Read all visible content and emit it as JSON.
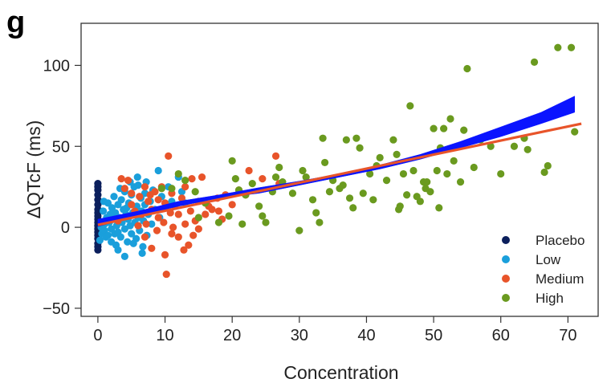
{
  "panel_label": "g",
  "chart_data": {
    "type": "scatter",
    "xlabel": "Concentration",
    "ylabel": "ΔQTcF (ms)",
    "xlim": [
      -2.5,
      74.5
    ],
    "ylim": [
      -55,
      126
    ],
    "x_ticks": [
      0,
      10,
      20,
      30,
      40,
      50,
      60,
      70
    ],
    "y_ticks": [
      -50,
      0,
      50,
      100
    ],
    "grid": false,
    "legend_position": "bottom-right",
    "series": [
      {
        "name": "Placebo",
        "color": "#0b1f5c",
        "points": [
          [
            0,
            -14
          ],
          [
            0,
            -12
          ],
          [
            0,
            -10
          ],
          [
            0,
            -7
          ],
          [
            0,
            -5
          ],
          [
            0,
            -3
          ],
          [
            0,
            -1
          ],
          [
            0,
            1
          ],
          [
            0,
            3
          ],
          [
            0,
            5
          ],
          [
            0,
            7
          ],
          [
            0,
            9
          ],
          [
            0,
            11
          ],
          [
            0,
            14
          ],
          [
            0,
            17
          ],
          [
            0,
            20
          ],
          [
            0,
            23
          ],
          [
            0,
            25
          ],
          [
            0,
            27
          ]
        ]
      },
      {
        "name": "Low",
        "color": "#1a9fdb",
        "points": [
          [
            0.3,
            -8
          ],
          [
            0.5,
            0
          ],
          [
            0.6,
            -4
          ],
          [
            0.8,
            10
          ],
          [
            1.0,
            2
          ],
          [
            1.0,
            -2
          ],
          [
            1.3,
            6
          ],
          [
            1.5,
            -5
          ],
          [
            1.7,
            3
          ],
          [
            1.8,
            8
          ],
          [
            2.0,
            -1
          ],
          [
            2.1,
            12
          ],
          [
            2.3,
            5
          ],
          [
            2.5,
            -4
          ],
          [
            2.6,
            9
          ],
          [
            2.8,
            1
          ],
          [
            3.0,
            14
          ],
          [
            3.0,
            -3
          ],
          [
            3.2,
            6
          ],
          [
            3.4,
            -6
          ],
          [
            3.5,
            17
          ],
          [
            3.6,
            3
          ],
          [
            3.8,
            11
          ],
          [
            4.0,
            -1
          ],
          [
            4.0,
            22
          ],
          [
            4.2,
            8
          ],
          [
            4.4,
            -9
          ],
          [
            4.5,
            5
          ],
          [
            4.6,
            15
          ],
          [
            4.8,
            1
          ],
          [
            5.0,
            20
          ],
          [
            5.0,
            -4
          ],
          [
            5.2,
            9
          ],
          [
            5.4,
            25
          ],
          [
            5.5,
            3
          ],
          [
            5.7,
            -7
          ],
          [
            5.8,
            13
          ],
          [
            6.0,
            26
          ],
          [
            6.0,
            6
          ],
          [
            6.2,
            -2
          ],
          [
            6.4,
            18
          ],
          [
            6.5,
            10
          ],
          [
            6.7,
            -12
          ],
          [
            6.8,
            4
          ],
          [
            7.0,
            21
          ],
          [
            7.0,
            14
          ],
          [
            7.3,
            -5
          ],
          [
            7.5,
            8
          ],
          [
            7.8,
            16
          ],
          [
            8.0,
            2
          ],
          [
            8.2,
            23
          ],
          [
            8.5,
            11
          ],
          [
            9.0,
            35
          ],
          [
            9.2,
            6
          ],
          [
            9.5,
            19
          ],
          [
            10.0,
            12
          ],
          [
            10.5,
            25
          ],
          [
            11.0,
            16
          ],
          [
            12.0,
            31
          ],
          [
            12.5,
            22
          ],
          [
            13.0,
            15
          ],
          [
            4.0,
            -18
          ],
          [
            3.0,
            -14
          ],
          [
            2.0,
            -9
          ],
          [
            1.5,
            15
          ],
          [
            2.4,
            19
          ],
          [
            3.3,
            24
          ],
          [
            4.8,
            28
          ],
          [
            5.9,
            31
          ],
          [
            6.6,
            -16
          ],
          [
            7.2,
            28
          ],
          [
            1.2,
            -6
          ],
          [
            0.9,
            16
          ],
          [
            2.7,
            -11
          ],
          [
            4.3,
            12
          ],
          [
            5.3,
            -10
          ]
        ]
      },
      {
        "name": "Medium",
        "color": "#e8542a",
        "points": [
          [
            3.0,
            4
          ],
          [
            3.5,
            30
          ],
          [
            4.0,
            24
          ],
          [
            4.5,
            29
          ],
          [
            5.0,
            14
          ],
          [
            5.0,
            21
          ],
          [
            5.5,
            10
          ],
          [
            6.0,
            1
          ],
          [
            6.2,
            19
          ],
          [
            6.5,
            8
          ],
          [
            7.0,
            -6
          ],
          [
            7.0,
            25
          ],
          [
            7.5,
            16
          ],
          [
            7.8,
            20
          ],
          [
            8.0,
            -13
          ],
          [
            8.0,
            11
          ],
          [
            8.5,
            22
          ],
          [
            9.0,
            17
          ],
          [
            9.0,
            6
          ],
          [
            9.5,
            25
          ],
          [
            10.0,
            -17
          ],
          [
            10.0,
            15
          ],
          [
            10.2,
            -29
          ],
          [
            10.5,
            44
          ],
          [
            10.8,
            9
          ],
          [
            11.0,
            -4
          ],
          [
            11.0,
            21
          ],
          [
            11.5,
            13
          ],
          [
            12.0,
            8
          ],
          [
            12.0,
            -6
          ],
          [
            12.5,
            18
          ],
          [
            13.0,
            2
          ],
          [
            13.0,
            25
          ],
          [
            13.5,
            -11
          ],
          [
            13.8,
            10
          ],
          [
            14.0,
            30
          ],
          [
            14.5,
            4
          ],
          [
            15.0,
            16
          ],
          [
            15.0,
            -1
          ],
          [
            15.5,
            31
          ],
          [
            16.0,
            8
          ],
          [
            16.5,
            13
          ],
          [
            17.0,
            11
          ],
          [
            17.8,
            18
          ],
          [
            18.0,
            10
          ],
          [
            18.5,
            5
          ],
          [
            19.0,
            20
          ],
          [
            20.0,
            14
          ],
          [
            21.0,
            23
          ],
          [
            22.0,
            20
          ],
          [
            22.5,
            35
          ],
          [
            24.5,
            30
          ],
          [
            26.5,
            44
          ],
          [
            27.0,
            27
          ],
          [
            14.2,
            -5
          ],
          [
            12.8,
            -14
          ],
          [
            11.2,
            0
          ],
          [
            9.8,
            3
          ],
          [
            8.8,
            -2
          ],
          [
            7.2,
            2
          ]
        ]
      },
      {
        "name": "High",
        "color": "#6a9a1f",
        "points": [
          [
            9.5,
            24
          ],
          [
            11.0,
            24
          ],
          [
            12.0,
            33
          ],
          [
            13.0,
            29
          ],
          [
            14.5,
            22
          ],
          [
            15.0,
            6
          ],
          [
            16.0,
            15
          ],
          [
            18.0,
            3
          ],
          [
            19.5,
            7
          ],
          [
            20.0,
            41
          ],
          [
            20.5,
            30
          ],
          [
            21.0,
            23
          ],
          [
            21.5,
            2
          ],
          [
            22.0,
            20
          ],
          [
            23.0,
            27
          ],
          [
            24.0,
            13
          ],
          [
            24.5,
            7
          ],
          [
            25.0,
            3
          ],
          [
            26.0,
            22
          ],
          [
            26.5,
            31
          ],
          [
            27.0,
            37
          ],
          [
            27.5,
            28
          ],
          [
            29.0,
            21
          ],
          [
            30.0,
            -2
          ],
          [
            30.5,
            35
          ],
          [
            31.0,
            31
          ],
          [
            32.0,
            17
          ],
          [
            32.5,
            9
          ],
          [
            33.0,
            3
          ],
          [
            33.5,
            55
          ],
          [
            34.5,
            22
          ],
          [
            35.0,
            29
          ],
          [
            36.0,
            24
          ],
          [
            37.0,
            54
          ],
          [
            37.5,
            18
          ],
          [
            38.0,
            12
          ],
          [
            38.5,
            55
          ],
          [
            39.0,
            49
          ],
          [
            39.5,
            21
          ],
          [
            40.5,
            33
          ],
          [
            41.0,
            17
          ],
          [
            42.0,
            43
          ],
          [
            43.0,
            29
          ],
          [
            44.0,
            54
          ],
          [
            44.5,
            45
          ],
          [
            45.0,
            13
          ],
          [
            45.5,
            33
          ],
          [
            46.0,
            20
          ],
          [
            46.5,
            75
          ],
          [
            47.0,
            35
          ],
          [
            47.5,
            19
          ],
          [
            48.0,
            16
          ],
          [
            48.5,
            28
          ],
          [
            49.0,
            28
          ],
          [
            49.5,
            22
          ],
          [
            50.0,
            61
          ],
          [
            50.5,
            35
          ],
          [
            51.0,
            49
          ],
          [
            51.5,
            61
          ],
          [
            52.0,
            33
          ],
          [
            52.5,
            67
          ],
          [
            53.0,
            41
          ],
          [
            54.0,
            28
          ],
          [
            54.5,
            60
          ],
          [
            55.0,
            98
          ],
          [
            56.0,
            37
          ],
          [
            57.0,
            54
          ],
          [
            58.5,
            50
          ],
          [
            60.0,
            33
          ],
          [
            62.0,
            50
          ],
          [
            63.5,
            55
          ],
          [
            64.0,
            48
          ],
          [
            65.0,
            102
          ],
          [
            66.5,
            34
          ],
          [
            67.0,
            38
          ],
          [
            68.5,
            111
          ],
          [
            70.5,
            111
          ],
          [
            71.0,
            59
          ],
          [
            36.5,
            26
          ],
          [
            41.5,
            38
          ],
          [
            48.8,
            24
          ],
          [
            50.8,
            12
          ],
          [
            33.8,
            40
          ],
          [
            44.8,
            11
          ]
        ]
      }
    ],
    "linear_fit": {
      "color": "#e8542a",
      "x": [
        0,
        72
      ],
      "y": [
        1.5,
        64
      ]
    },
    "nonlinear_fit_band": {
      "color": "#0a14ff",
      "x": [
        0,
        6,
        12,
        18,
        24,
        30,
        36,
        42,
        48,
        54,
        60,
        66,
        71
      ],
      "lower": [
        0.5,
        7,
        13,
        18,
        21,
        26,
        31,
        36,
        42,
        49,
        56,
        64,
        71
      ],
      "upper": [
        5,
        10,
        16,
        20,
        24.5,
        28.5,
        33,
        38.5,
        45,
        53,
        62,
        71,
        81
      ]
    }
  }
}
